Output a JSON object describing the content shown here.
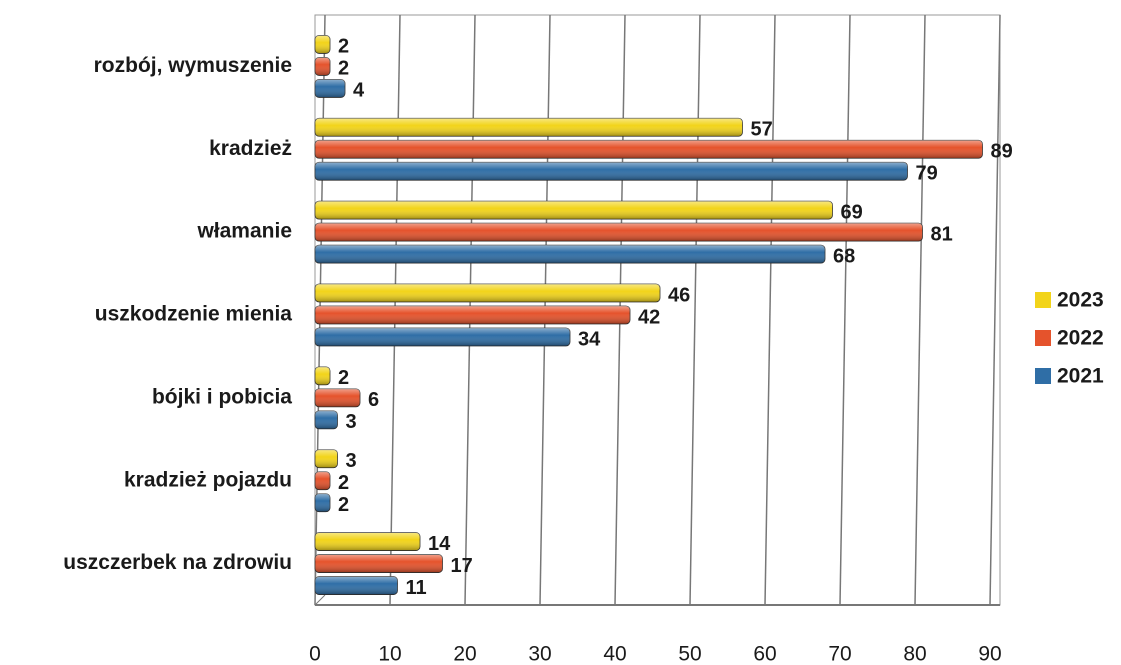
{
  "chart_data": {
    "type": "bar",
    "orientation": "horizontal",
    "categories": [
      "rozbój, wymuszenie",
      "kradzież",
      "włamanie",
      "uszkodzenie mienia",
      "bójki i pobicia",
      "kradzież pojazdu",
      "uszczerbek na zdrowiu"
    ],
    "series": [
      {
        "name": "2023",
        "color": "#f2d41a",
        "values": [
          2,
          57,
          69,
          46,
          2,
          3,
          14
        ]
      },
      {
        "name": "2022",
        "color": "#e5532c",
        "values": [
          2,
          89,
          81,
          42,
          6,
          2,
          17
        ]
      },
      {
        "name": "2021",
        "color": "#2f6ea6",
        "values": [
          4,
          79,
          68,
          34,
          3,
          2,
          11
        ]
      }
    ],
    "xlim": [
      0,
      90
    ],
    "xticks": [
      0,
      10,
      20,
      30,
      40,
      50,
      60,
      70,
      80,
      90
    ],
    "grid": true,
    "legend": "right"
  }
}
